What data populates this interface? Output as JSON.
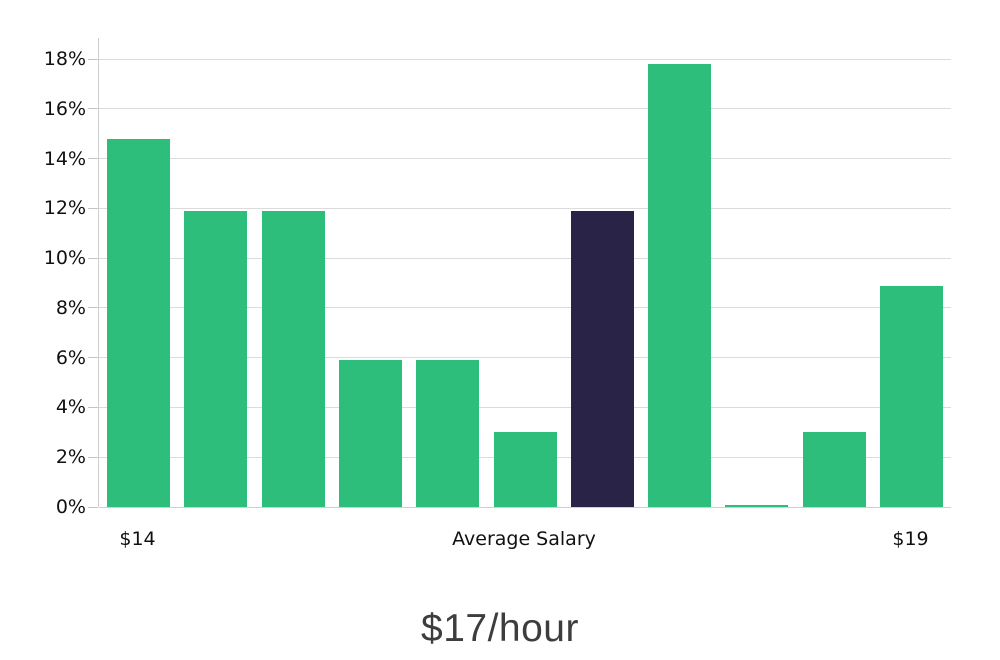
{
  "chart_data": {
    "type": "bar",
    "title": "$17/hour",
    "values": [
      14.8,
      11.9,
      11.9,
      5.9,
      5.9,
      3.0,
      11.9,
      17.8,
      0.1,
      3.0,
      8.9
    ],
    "highlighted_bar_index": 6,
    "y_tick_values": [
      0,
      2,
      4,
      6,
      8,
      10,
      12,
      14,
      16,
      18
    ],
    "y_tick_labels": [
      "0%",
      "2%",
      "4%",
      "6%",
      "8%",
      "10%",
      "12%",
      "14%",
      "16%",
      "18%"
    ],
    "ylim": [
      0,
      18.85
    ],
    "x_tick_labels": [
      {
        "label": "$14",
        "bar_index": 0
      },
      {
        "label": "Average Salary",
        "bar_index": 5
      },
      {
        "label": "$19",
        "bar_index": 10
      }
    ],
    "grid": "horizontal",
    "legend": "none",
    "colors": {
      "bar": "#2dbe7c",
      "highlighted_bar": "#292347",
      "gridline": "#dcdcdc",
      "axis_line": "#cfcfcf",
      "tick_text": "#111111",
      "title_text": "#3d3d3d"
    }
  }
}
